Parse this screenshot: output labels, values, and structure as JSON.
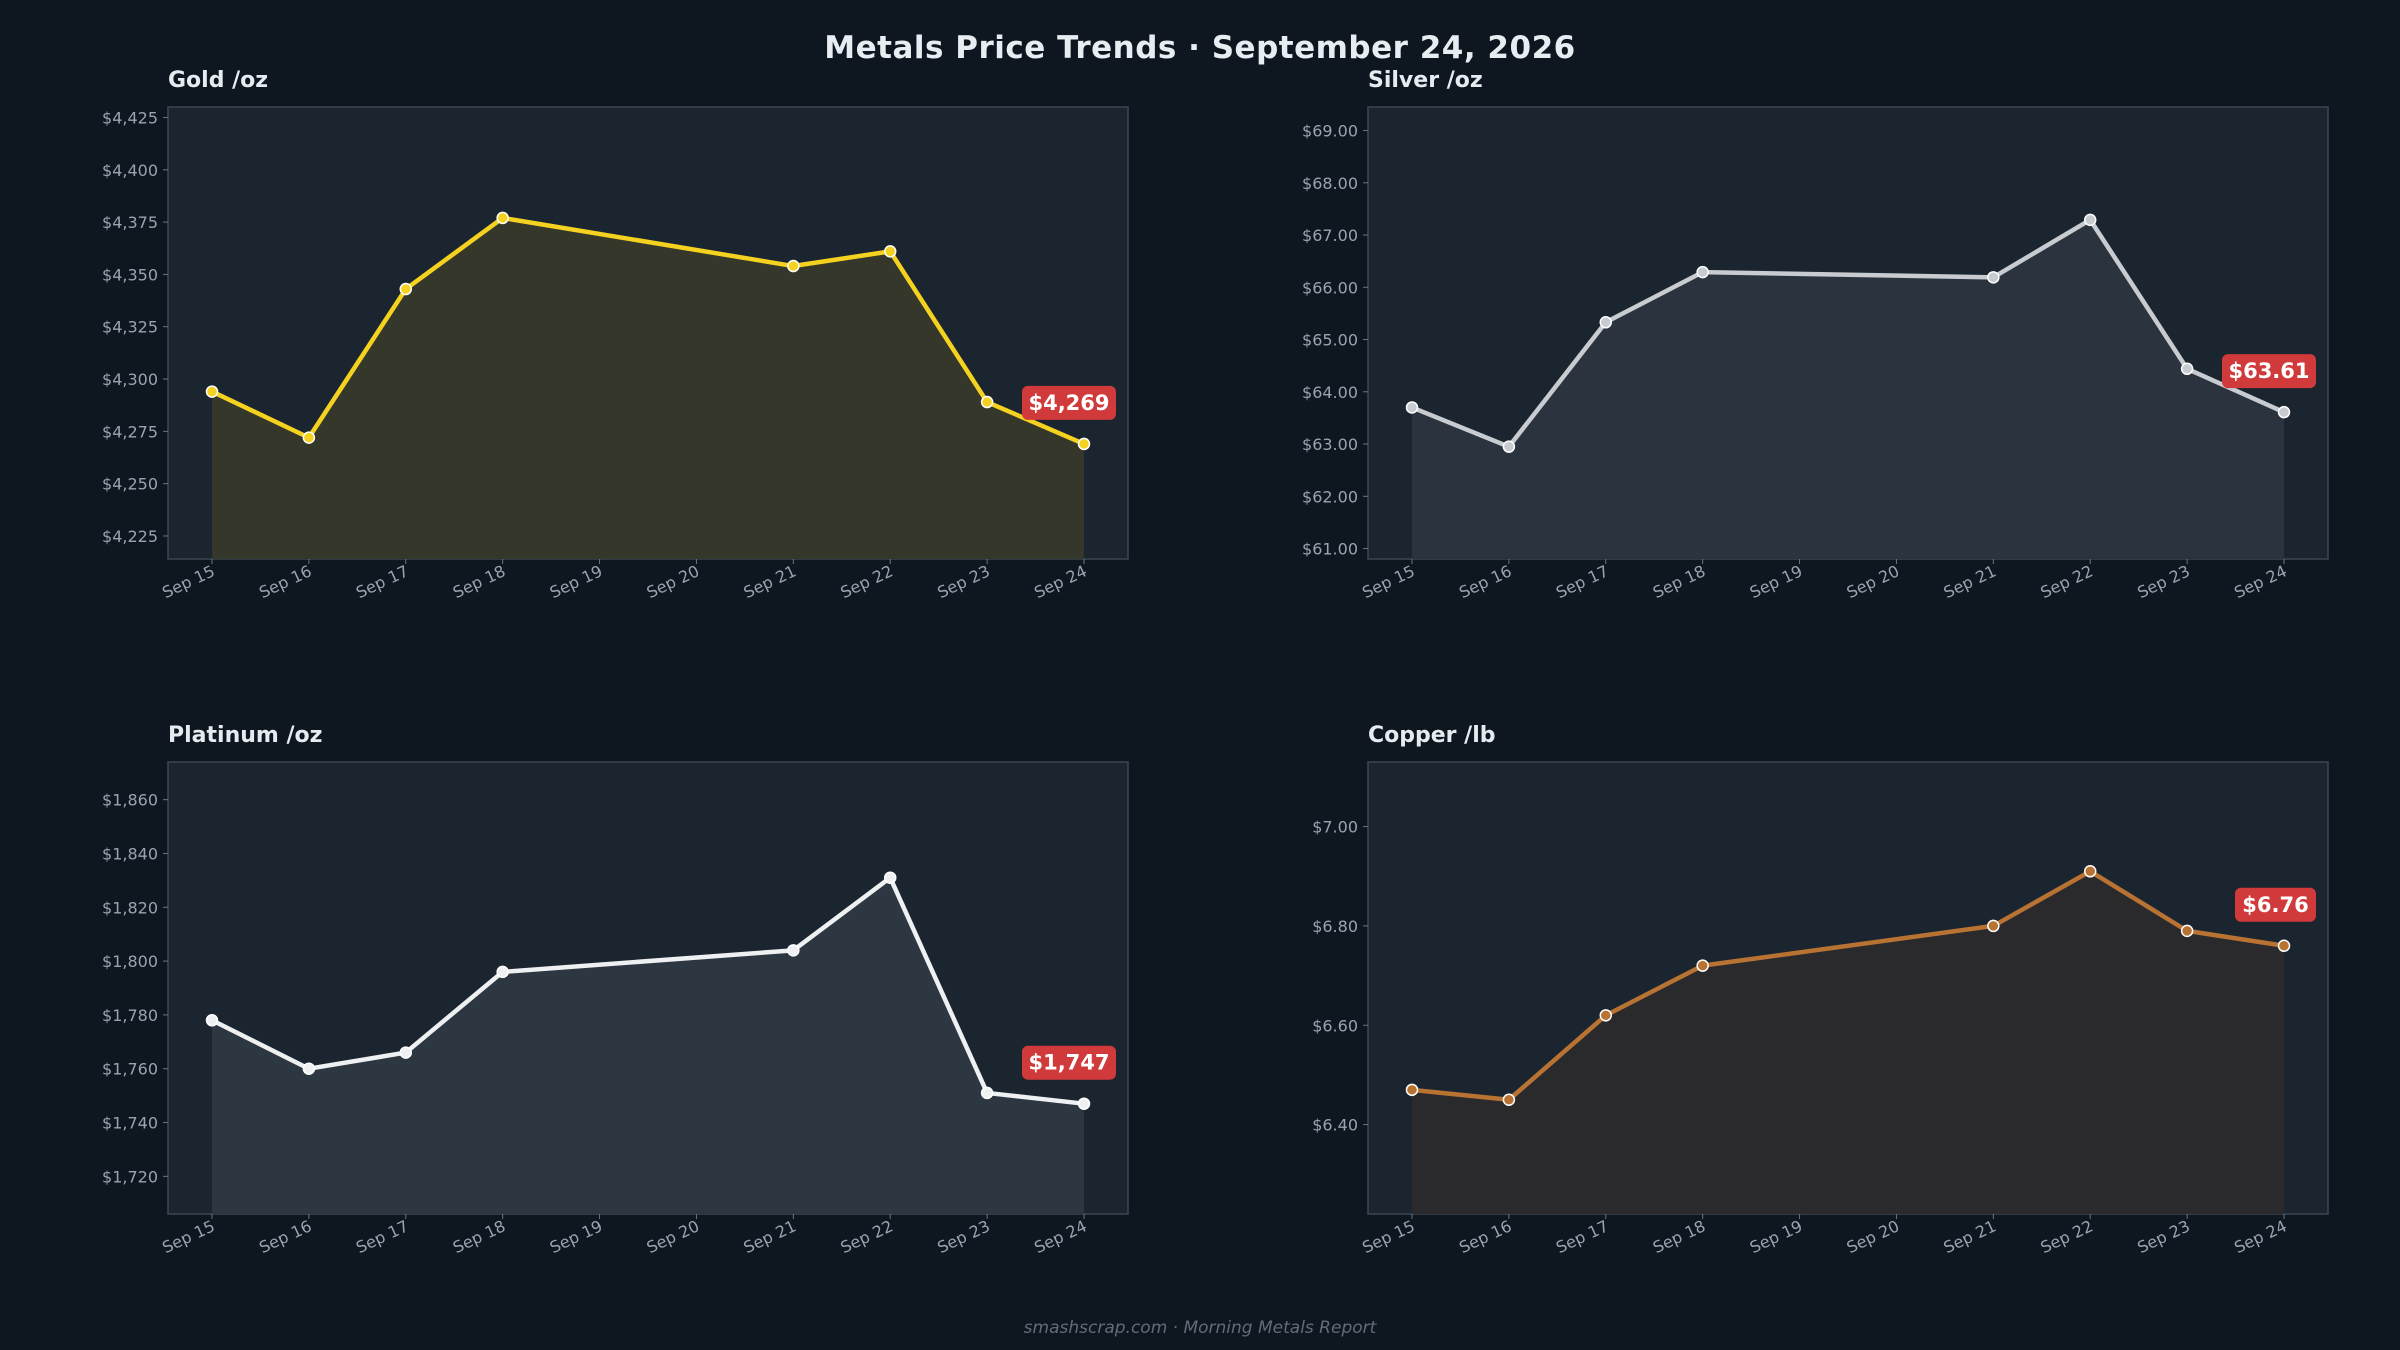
{
  "title": "Metals Price Trends  ·  September 24, 2026",
  "footer": "smashscrap.com  ·  Morning Metals Report",
  "chart_data": [
    {
      "type": "area",
      "title": "Gold  /oz",
      "x": [
        "Sep 15",
        "Sep 16",
        "Sep 17",
        "Sep 18",
        "Sep 21",
        "Sep 22",
        "Sep 23",
        "Sep 24"
      ],
      "x_ticks": [
        "Sep 15",
        "Sep 16",
        "Sep 17",
        "Sep 18",
        "Sep 19",
        "Sep 20",
        "Sep 21",
        "Sep 22",
        "Sep 23",
        "Sep 24"
      ],
      "values": [
        4294,
        4272,
        4343,
        4377,
        4354,
        4361,
        4289,
        4269
      ],
      "y_ticks": [
        4225,
        4250,
        4275,
        4300,
        4325,
        4350,
        4375,
        4400,
        4425
      ],
      "y_labels": [
        "$4,225",
        "$4,250",
        "$4,275",
        "$4,300",
        "$4,325",
        "$4,350",
        "$4,375",
        "$4,400",
        "$4,425"
      ],
      "ylim": [
        4214,
        4430
      ],
      "latest_label": "$4,269",
      "color": "#f5d21f",
      "fill_color": "#34372a",
      "grid": false
    },
    {
      "type": "area",
      "title": "Silver  /oz",
      "x": [
        "Sep 15",
        "Sep 16",
        "Sep 17",
        "Sep 18",
        "Sep 21",
        "Sep 22",
        "Sep 23",
        "Sep 24"
      ],
      "x_ticks": [
        "Sep 15",
        "Sep 16",
        "Sep 17",
        "Sep 18",
        "Sep 19",
        "Sep 20",
        "Sep 21",
        "Sep 22",
        "Sep 23",
        "Sep 24"
      ],
      "values": [
        63.7,
        62.95,
        65.33,
        66.29,
        66.19,
        67.29,
        64.44,
        63.61
      ],
      "y_ticks": [
        61,
        62,
        63,
        64,
        65,
        66,
        67,
        68,
        69
      ],
      "y_labels": [
        "$61.00",
        "$62.00",
        "$63.00",
        "$64.00",
        "$65.00",
        "$66.00",
        "$67.00",
        "$68.00",
        "$69.00"
      ],
      "ylim": [
        60.8,
        69.45
      ],
      "latest_label": "$63.61",
      "color": "#c8ccd1",
      "fill_color": "#2a333e",
      "grid": false
    },
    {
      "type": "area",
      "title": "Platinum  /oz",
      "x": [
        "Sep 15",
        "Sep 16",
        "Sep 17",
        "Sep 18",
        "Sep 21",
        "Sep 22",
        "Sep 23",
        "Sep 24"
      ],
      "x_ticks": [
        "Sep 15",
        "Sep 16",
        "Sep 17",
        "Sep 18",
        "Sep 19",
        "Sep 20",
        "Sep 21",
        "Sep 22",
        "Sep 23",
        "Sep 24"
      ],
      "values": [
        1778,
        1760,
        1766,
        1796,
        1804,
        1831,
        1751,
        1747
      ],
      "y_ticks": [
        1720,
        1740,
        1760,
        1780,
        1800,
        1820,
        1840,
        1860
      ],
      "y_labels": [
        "$1,720",
        "$1,740",
        "$1,760",
        "$1,780",
        "$1,800",
        "$1,820",
        "$1,840",
        "$1,860"
      ],
      "ylim": [
        1706,
        1874
      ],
      "latest_label": "$1,747",
      "color": "#eef0f2",
      "fill_color": "#2c3741",
      "grid": false
    },
    {
      "type": "area",
      "title": "Copper  /lb",
      "x": [
        "Sep 15",
        "Sep 16",
        "Sep 17",
        "Sep 18",
        "Sep 21",
        "Sep 22",
        "Sep 23",
        "Sep 24"
      ],
      "x_ticks": [
        "Sep 15",
        "Sep 16",
        "Sep 17",
        "Sep 18",
        "Sep 19",
        "Sep 20",
        "Sep 21",
        "Sep 22",
        "Sep 23",
        "Sep 24"
      ],
      "values": [
        6.47,
        6.45,
        6.62,
        6.72,
        6.8,
        6.91,
        6.79,
        6.76
      ],
      "y_ticks": [
        6.4,
        6.6,
        6.8,
        7.0
      ],
      "y_labels": [
        "$6.40",
        "$6.60",
        "$6.80",
        "$7.00"
      ],
      "ylim": [
        6.22,
        7.13
      ],
      "latest_label": "$6.76",
      "color": "#b87333",
      "fill_color": "#2a2a2d",
      "grid": false
    }
  ]
}
